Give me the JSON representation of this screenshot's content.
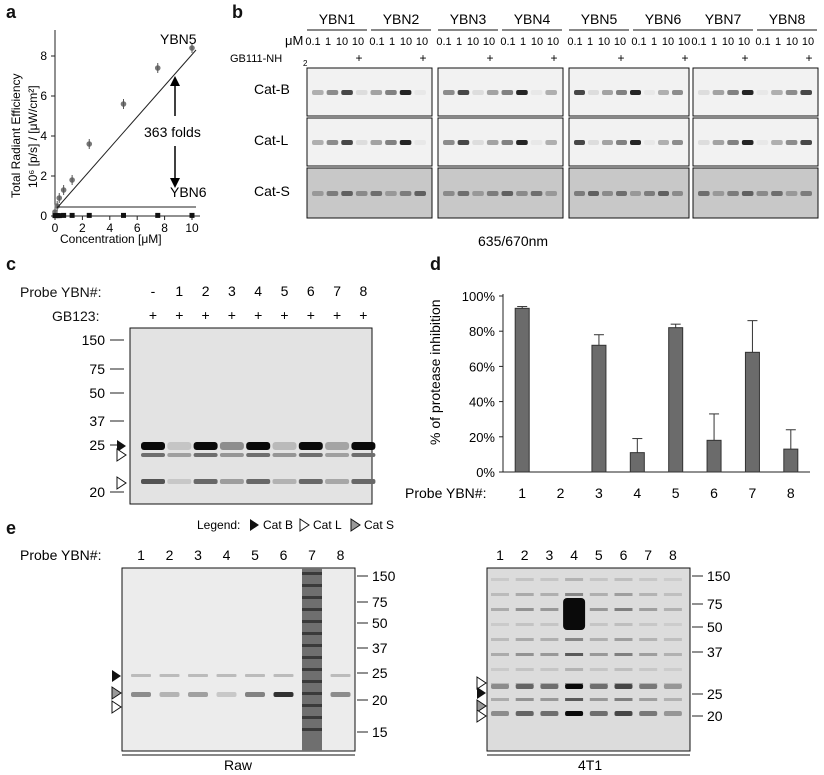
{
  "panels": {
    "a": "a",
    "b": "b",
    "c": "c",
    "d": "d",
    "e": "e"
  },
  "panel_a": {
    "ylabel_line1": "Total Radiant Efficiency",
    "ylabel_line2": "10⁶ [p/s] / [μW/cm²]",
    "xlabel": "Concentration [μM]",
    "annotation_top": "YBN5",
    "annotation_bottom": "YBN6",
    "fold_text": "363 folds",
    "chart_data": {
      "type": "scatter",
      "xlim": [
        0,
        10
      ],
      "ylim": [
        0,
        9
      ],
      "xticks": [
        "0",
        "2",
        "4",
        "6",
        "8",
        "10"
      ],
      "yticks": [
        "0",
        "2",
        "4",
        "6",
        "8"
      ],
      "series": [
        {
          "name": "YBN5",
          "x": [
            0,
            0.16,
            0.31,
            0.63,
            1.25,
            2.5,
            5,
            7.5,
            10
          ],
          "y": [
            0.2,
            0.5,
            0.9,
            1.3,
            1.8,
            3.6,
            5.6,
            7.4,
            8.4
          ]
        },
        {
          "name": "YBN6",
          "x": [
            0,
            0.16,
            0.31,
            0.63,
            1.25,
            2.5,
            5,
            7.5,
            10
          ],
          "y": [
            0.02,
            0.02,
            0.02,
            0.03,
            0.03,
            0.03,
            0.03,
            0.03,
            0.03
          ]
        }
      ]
    }
  },
  "panel_b": {
    "groups": [
      "YBN1",
      "YBN2",
      "YBN3",
      "YBN4",
      "YBN5",
      "YBN6",
      "YBN7",
      "YBN8"
    ],
    "conc_row_label": "μM",
    "conc_values": [
      "0.1",
      "1",
      "10",
      "10"
    ],
    "conc_values_ybn7": [
      "0.1",
      "1",
      "10",
      "10"
    ],
    "gb_label": "GB111-NH",
    "gb_sub": "2",
    "plus": "+",
    "rows": [
      "Cat-B",
      "Cat-L",
      "Cat-S"
    ],
    "wavelength": "635/670nm"
  },
  "panel_c": {
    "probe_label": "Probe YBN#:",
    "lanes": [
      "-",
      "1",
      "2",
      "3",
      "4",
      "5",
      "6",
      "7",
      "8"
    ],
    "gb_label": "GB123:",
    "gb_vals": [
      "+",
      "+",
      "+",
      "+",
      "+",
      "+",
      "+",
      "+",
      "+"
    ],
    "markers": [
      "150",
      "75",
      "50",
      "37",
      "25",
      "20"
    ]
  },
  "panel_d": {
    "ylabel": "% of protease inhibition",
    "probe_label": "Probe YBN#:",
    "chart_data": {
      "type": "bar",
      "categories": [
        "1",
        "2",
        "3",
        "4",
        "5",
        "6",
        "7",
        "8"
      ],
      "values": [
        93,
        0,
        72,
        11,
        82,
        18,
        68,
        13
      ],
      "errors": [
        1,
        0,
        6,
        8,
        2,
        15,
        18,
        11
      ],
      "ylim": [
        0,
        100
      ],
      "yticks": [
        "0%",
        "20%",
        "40%",
        "60%",
        "80%",
        "100%"
      ]
    }
  },
  "panel_e": {
    "legend_prefix": "Legend:",
    "legend_items": [
      "Cat B",
      "Cat L",
      "Cat S"
    ],
    "probe_label": "Probe YBN#:",
    "lanes": [
      "1",
      "2",
      "3",
      "4",
      "5",
      "6",
      "7",
      "8"
    ],
    "markers_left": [
      "150",
      "75",
      "50",
      "37",
      "25",
      "20",
      "15"
    ],
    "markers_right": [
      "150",
      "75",
      "50",
      "37",
      "25",
      "20"
    ],
    "caption_left": "Raw",
    "caption_right": "4T1"
  }
}
